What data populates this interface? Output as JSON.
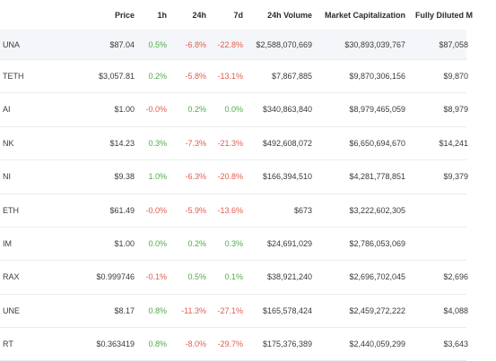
{
  "table": {
    "headers": {
      "price": "Price",
      "h1": "1h",
      "h24": "24h",
      "d7": "7d",
      "volume": "24h Volume",
      "mcap": "Market Capitalization",
      "fdv": "Fully Diluted M"
    },
    "rows": [
      {
        "name": "UNA",
        "price": "$87.04",
        "h1": "0.5%",
        "h24": "-6.8%",
        "d7": "-22.8%",
        "volume": "$2,588,070,669",
        "mcap": "$30,893,039,767",
        "fdv": "$87,058"
      },
      {
        "name": "TETH",
        "price": "$3,057.81",
        "h1": "0.2%",
        "h24": "-5.8%",
        "d7": "-13.1%",
        "volume": "$7,867,885",
        "mcap": "$9,870,306,156",
        "fdv": "$9,870"
      },
      {
        "name": "AI",
        "price": "$1.00",
        "h1": "-0.0%",
        "h24": "0.2%",
        "d7": "0.0%",
        "volume": "$340,863,840",
        "mcap": "$8,979,465,059",
        "fdv": "$8,979"
      },
      {
        "name": "NK",
        "price": "$14.23",
        "h1": "0.3%",
        "h24": "-7.3%",
        "d7": "-21.3%",
        "volume": "$492,608,072",
        "mcap": "$6,650,694,670",
        "fdv": "$14,241"
      },
      {
        "name": "NI",
        "price": "$9.38",
        "h1": "1.0%",
        "h24": "-6.3%",
        "d7": "-20.8%",
        "volume": "$166,394,510",
        "mcap": "$4,281,778,851",
        "fdv": "$9,379"
      },
      {
        "name": "ETH",
        "price": "$61.49",
        "h1": "-0.0%",
        "h24": "-5.9%",
        "d7": "-13.6%",
        "volume": "$673",
        "mcap": "$3,222,602,305",
        "fdv": ""
      },
      {
        "name": "IM",
        "price": "$1.00",
        "h1": "0.0%",
        "h24": "0.2%",
        "d7": "0.3%",
        "volume": "$24,691,029",
        "mcap": "$2,786,053,069",
        "fdv": ""
      },
      {
        "name": "RAX",
        "price": "$0.999746",
        "h1": "-0.1%",
        "h24": "0.5%",
        "d7": "0.1%",
        "volume": "$38,921,240",
        "mcap": "$2,696,702,045",
        "fdv": "$2,696"
      },
      {
        "name": "UNE",
        "price": "$8.17",
        "h1": "0.8%",
        "h24": "-11.3%",
        "d7": "-27.1%",
        "volume": "$165,578,424",
        "mcap": "$2,459,272,222",
        "fdv": "$4,088"
      },
      {
        "name": "RT",
        "price": "$0.363419",
        "h1": "0.8%",
        "h24": "-8.0%",
        "d7": "-29.7%",
        "volume": "$175,376,389",
        "mcap": "$2,440,059,299",
        "fdv": "$3,643"
      }
    ]
  },
  "colors": {
    "positive": "#52a94a",
    "negative": "#e25c4d",
    "highlight_row": "#f4f6f9"
  }
}
